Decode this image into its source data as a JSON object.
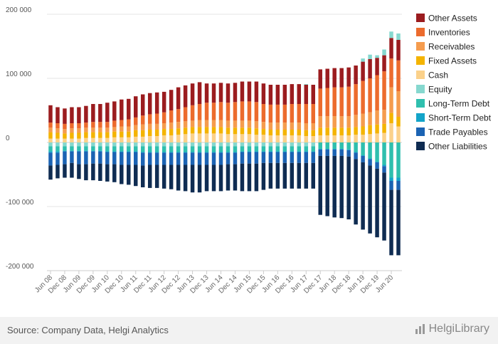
{
  "source": "Source: Company Data, Helgi Analytics",
  "brand": "HelgiLibrary",
  "colors": {
    "Other Assets": "#9b1c1f",
    "Inventories": "#ec6b2d",
    "Receivables": "#f59c4e",
    "Fixed Assets": "#f4b400",
    "Cash": "#fbd18a",
    "Equity": "#86d8cf",
    "Long-Term Debt": "#2fbfae",
    "Short-Term Debt": "#13a4c9",
    "Trade Payables": "#1b63b3",
    "Other Liabilities": "#0f2c52"
  },
  "chart_data": {
    "type": "bar",
    "stacked": true,
    "title": "",
    "xlabel": "",
    "ylabel": "",
    "ylim": [
      -200000,
      200000
    ],
    "yticks": [
      200000,
      100000,
      0,
      -100000,
      -200000
    ],
    "ytick_labels": [
      "200 000",
      "100 000",
      "0",
      "-100 000",
      "-200 000"
    ],
    "xtick_labels": [
      "Jun 08",
      "Dec 08",
      "Jun 09",
      "Dec 09",
      "Jun 10",
      "Dec 10",
      "Jun 11",
      "Dec 11",
      "Jun 12",
      "Dec 12",
      "Jun 13",
      "Dec 13",
      "Jun 14",
      "Dec 14",
      "Jun 15",
      "Dec 15",
      "Jun 16",
      "Dec 16",
      "Jun 17",
      "Dec 17",
      "Jun 18",
      "Dec 18",
      "Jun 19",
      "Dec 19",
      "Jun 20"
    ],
    "legend_position": "right",
    "categories": [
      "Jun 08",
      "Sep 08",
      "Dec 08",
      "Mar 09",
      "Jun 09",
      "Sep 09",
      "Dec 09",
      "Mar 10",
      "Jun 10",
      "Sep 10",
      "Dec 10",
      "Mar 11",
      "Jun 11",
      "Sep 11",
      "Dec 11",
      "Mar 12",
      "Jun 12",
      "Sep 12",
      "Dec 12",
      "Mar 13",
      "Jun 13",
      "Sep 13",
      "Dec 13",
      "Mar 14",
      "Jun 14",
      "Sep 14",
      "Dec 14",
      "Mar 15",
      "Jun 15",
      "Sep 15",
      "Dec 15",
      "Mar 16",
      "Jun 16",
      "Sep 16",
      "Dec 16",
      "Mar 17",
      "Jun 17",
      "Sep 17",
      "Dec 17",
      "Mar 18",
      "Jun 18",
      "Sep 18",
      "Dec 18",
      "Mar 19",
      "Jun 19",
      "Sep 19",
      "Dec 19",
      "Mar 20",
      "Jun 20",
      "Sep 20"
    ],
    "assets_series": [
      {
        "name": "Cash",
        "values": [
          6000,
          6000,
          6000,
          6000,
          6000,
          7000,
          7000,
          7000,
          7000,
          8000,
          8000,
          8000,
          9000,
          9000,
          10000,
          10000,
          11000,
          11000,
          12000,
          13000,
          14000,
          14000,
          14000,
          14000,
          14000,
          13000,
          13000,
          13000,
          13000,
          12000,
          12000,
          11000,
          11000,
          11000,
          11000,
          11000,
          10000,
          10000,
          11000,
          11000,
          11000,
          11000,
          11000,
          12000,
          12000,
          13000,
          14000,
          15000,
          30000,
          25000
        ]
      },
      {
        "name": "Fixed Assets",
        "values": [
          10000,
          9000,
          8000,
          9000,
          9000,
          9000,
          9000,
          9000,
          9000,
          9000,
          9000,
          9000,
          10000,
          10000,
          10000,
          10000,
          10000,
          10000,
          10000,
          10000,
          10000,
          10000,
          10000,
          10000,
          10000,
          10000,
          10000,
          10000,
          10000,
          10000,
          9000,
          9000,
          9000,
          9000,
          9000,
          9000,
          9000,
          9000,
          12000,
          12000,
          12000,
          12000,
          12000,
          12000,
          13000,
          14000,
          14000,
          14000,
          16000,
          15000
        ]
      },
      {
        "name": "Receivables",
        "values": [
          7000,
          7000,
          7000,
          7000,
          7000,
          7000,
          7000,
          7000,
          7000,
          7000,
          8000,
          8000,
          8000,
          9000,
          9000,
          9000,
          9000,
          10000,
          10000,
          10000,
          10000,
          11000,
          11000,
          11000,
          11000,
          11000,
          11000,
          11000,
          11000,
          11000,
          11000,
          11000,
          11000,
          11000,
          11000,
          11000,
          11000,
          11000,
          18000,
          18000,
          18000,
          18000,
          18000,
          19000,
          20000,
          20000,
          22000,
          22000,
          40000,
          40000
        ]
      },
      {
        "name": "Inventories",
        "values": [
          8000,
          8000,
          8000,
          8000,
          8000,
          8000,
          9000,
          9000,
          9000,
          10000,
          10000,
          11000,
          12000,
          14000,
          15000,
          16000,
          17000,
          19000,
          20000,
          22000,
          24000,
          25000,
          27000,
          27000,
          28000,
          28000,
          29000,
          30000,
          30000,
          30000,
          28000,
          28000,
          28000,
          28000,
          29000,
          29000,
          30000,
          30000,
          43000,
          44000,
          45000,
          45000,
          46000,
          48000,
          51000,
          53000,
          55000,
          60000,
          45000,
          48000
        ]
      },
      {
        "name": "Other Assets",
        "values": [
          27000,
          25000,
          24000,
          25000,
          25000,
          26000,
          28000,
          28000,
          30000,
          30000,
          32000,
          32000,
          33000,
          33000,
          33000,
          33000,
          32000,
          32000,
          34000,
          34000,
          34000,
          34000,
          30000,
          30000,
          30000,
          30000,
          30000,
          31000,
          31000,
          32000,
          32000,
          31000,
          31000,
          31000,
          31000,
          31000,
          30000,
          30000,
          30000,
          30000,
          30000,
          30000,
          30000,
          29000,
          30000,
          30000,
          27000,
          25000,
          32000,
          32000
        ]
      },
      {
        "name": "Equity",
        "values": [
          0,
          0,
          0,
          0,
          0,
          0,
          0,
          0,
          0,
          0,
          0,
          0,
          0,
          0,
          0,
          0,
          0,
          0,
          0,
          0,
          0,
          0,
          0,
          0,
          0,
          0,
          0,
          0,
          0,
          0,
          0,
          0,
          0,
          0,
          0,
          0,
          1000,
          0,
          0,
          0,
          0,
          0,
          0,
          0,
          5000,
          7000,
          4000,
          9000,
          10000,
          10000
        ]
      }
    ],
    "liabilities_series": [
      {
        "name": "Equity",
        "values": [
          -6000,
          -6000,
          -6000,
          -6000,
          -6000,
          -6000,
          -6000,
          -6000,
          -6000,
          -6000,
          -6000,
          -6000,
          -6000,
          -6000,
          -6000,
          -6000,
          -6000,
          -6000,
          -6000,
          -6000,
          -6000,
          -6000,
          -6000,
          -6000,
          -6000,
          -6000,
          -6000,
          -6000,
          -6000,
          -6000,
          -6000,
          -6000,
          -6000,
          -6000,
          -6000,
          -6000,
          -6000,
          -6000,
          0,
          0,
          0,
          0,
          0,
          0,
          0,
          0,
          0,
          0,
          0,
          0
        ]
      },
      {
        "name": "Long-Term Debt",
        "values": [
          -8000,
          -8000,
          -7000,
          -7000,
          -7000,
          -7000,
          -7000,
          -7000,
          -8000,
          -8000,
          -8000,
          -8000,
          -8000,
          -9000,
          -9000,
          -9000,
          -9000,
          -9000,
          -9000,
          -9000,
          -9000,
          -9000,
          -9000,
          -9000,
          -9000,
          -9000,
          -9000,
          -8000,
          -8000,
          -8000,
          -8000,
          -8000,
          -8000,
          -8000,
          -8000,
          -8000,
          -8000,
          -8000,
          -10000,
          -10000,
          -10000,
          -10000,
          -11000,
          -15000,
          -20000,
          -25000,
          -30000,
          -35000,
          -55000,
          -55000
        ]
      },
      {
        "name": "Short-Term Debt",
        "values": [
          -2000,
          -2000,
          -1000,
          -1000,
          -1000,
          -1000,
          -1000,
          -1000,
          -1000,
          -1000,
          -1000,
          -1000,
          -1000,
          -1000,
          -1000,
          -1000,
          -1000,
          -1000,
          -1000,
          -1000,
          -1000,
          -1000,
          -1000,
          -1000,
          -1000,
          -1000,
          -1000,
          -1000,
          -1000,
          -1000,
          -1000,
          -1000,
          -1000,
          -1000,
          -1000,
          -1000,
          -1000,
          -1000,
          -1000,
          -1000,
          -1000,
          -1000,
          -1000,
          -1000,
          -1000,
          -1000,
          -1000,
          -2000,
          -5000,
          -5000
        ]
      },
      {
        "name": "Trade Payables",
        "values": [
          -20000,
          -19000,
          -20000,
          -18000,
          -20000,
          -20000,
          -19000,
          -19000,
          -19000,
          -19000,
          -20000,
          -20000,
          -20000,
          -20000,
          -19000,
          -19000,
          -19000,
          -19000,
          -19000,
          -19000,
          -19000,
          -19000,
          -19000,
          -19000,
          -19000,
          -18000,
          -18000,
          -18000,
          -18000,
          -18000,
          -17000,
          -17000,
          -17000,
          -17000,
          -17000,
          -17000,
          -17000,
          -17000,
          -10000,
          -10000,
          -10000,
          -10000,
          -10000,
          -10000,
          -10000,
          -10000,
          -10000,
          -10000,
          -14000,
          -14000
        ]
      },
      {
        "name": "Other Liabilities",
        "values": [
          -22000,
          -21000,
          -21000,
          -23000,
          -23000,
          -25000,
          -26000,
          -27000,
          -27000,
          -28000,
          -30000,
          -31000,
          -33000,
          -34000,
          -36000,
          -36000,
          -37000,
          -38000,
          -40000,
          -41000,
          -43000,
          -43000,
          -41000,
          -41000,
          -41000,
          -41000,
          -41000,
          -43000,
          -43000,
          -43000,
          -42000,
          -40000,
          -40000,
          -40000,
          -40000,
          -40000,
          -40000,
          -40000,
          -92000,
          -94000,
          -96000,
          -97000,
          -98000,
          -102000,
          -105000,
          -106000,
          -107000,
          -106000,
          -102000,
          -102000
        ]
      }
    ],
    "legend": [
      "Other Assets",
      "Inventories",
      "Receivables",
      "Fixed Assets",
      "Cash",
      "Equity",
      "Long-Term Debt",
      "Short-Term Debt",
      "Trade Payables",
      "Other Liabilities"
    ]
  }
}
